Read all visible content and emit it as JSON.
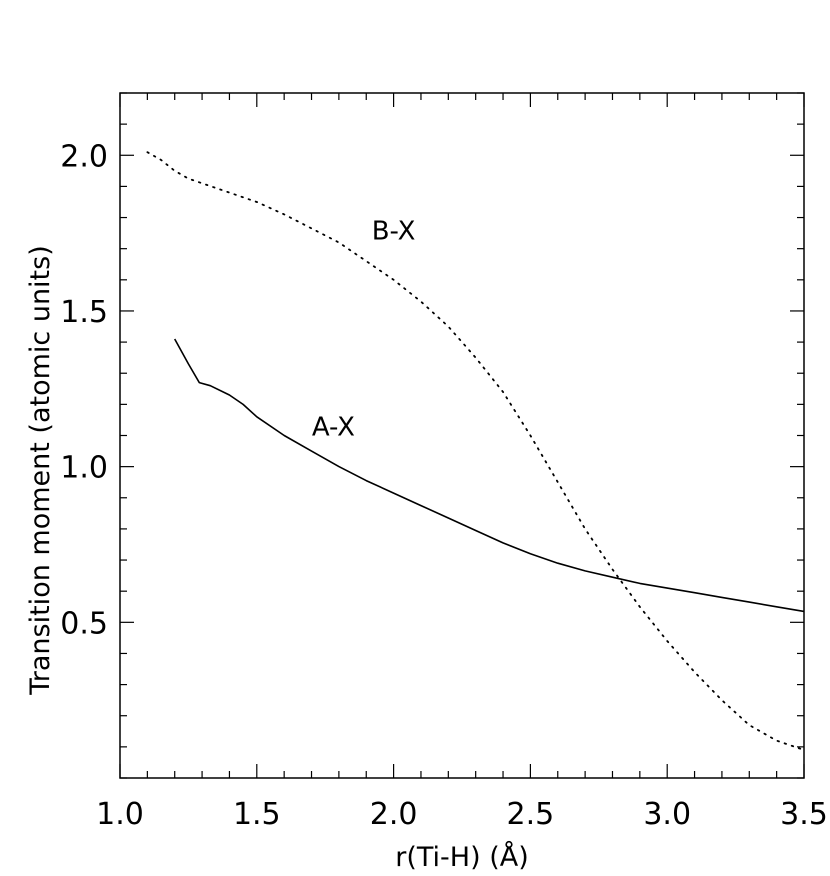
{
  "chart_data": {
    "type": "line",
    "xlabel": "r(Ti-H) (Å)",
    "ylabel": "Transition moment (atomic units)",
    "xlim": [
      1.0,
      3.5
    ],
    "ylim": [
      0.0,
      2.2
    ],
    "xticks": [
      1.0,
      1.5,
      2.0,
      2.5,
      3.0,
      3.5
    ],
    "xtick_labels": [
      "1.0",
      "1.5",
      "2.0",
      "2.5",
      "3.0",
      "3.5"
    ],
    "yticks": [
      0.5,
      1.0,
      1.5,
      2.0
    ],
    "ytick_labels": [
      "0.5",
      "1.0",
      "1.5",
      "2.0"
    ],
    "x_minor_step": 0.1,
    "y_minor_step": 0.1,
    "grid": false,
    "legend": "none",
    "series": [
      {
        "name": "B-X",
        "style": "dotted",
        "color": "#000000",
        "x": [
          1.1,
          1.15,
          1.2,
          1.25,
          1.3,
          1.4,
          1.5,
          1.6,
          1.7,
          1.8,
          1.9,
          2.0,
          2.1,
          2.2,
          2.3,
          2.4,
          2.5,
          2.6,
          2.7,
          2.8,
          2.9,
          3.0,
          3.1,
          3.2,
          3.3,
          3.4,
          3.5
        ],
        "y": [
          2.01,
          1.985,
          1.95,
          1.925,
          1.91,
          1.88,
          1.85,
          1.81,
          1.765,
          1.72,
          1.66,
          1.6,
          1.53,
          1.45,
          1.35,
          1.24,
          1.1,
          0.95,
          0.8,
          0.67,
          0.55,
          0.44,
          0.34,
          0.25,
          0.17,
          0.12,
          0.09
        ]
      },
      {
        "name": "A-X",
        "style": "solid",
        "color": "#000000",
        "x": [
          1.2,
          1.25,
          1.29,
          1.33,
          1.4,
          1.45,
          1.5,
          1.6,
          1.7,
          1.8,
          1.9,
          2.0,
          2.1,
          2.2,
          2.3,
          2.4,
          2.5,
          2.6,
          2.7,
          2.8,
          2.9,
          3.0,
          3.1,
          3.2,
          3.3,
          3.4,
          3.5
        ],
        "y": [
          1.41,
          1.33,
          1.27,
          1.26,
          1.23,
          1.2,
          1.16,
          1.1,
          1.05,
          1.0,
          0.955,
          0.915,
          0.875,
          0.835,
          0.795,
          0.755,
          0.72,
          0.69,
          0.665,
          0.645,
          0.625,
          0.61,
          0.595,
          0.58,
          0.565,
          0.55,
          0.535
        ]
      }
    ],
    "annotations": [
      {
        "text": "B-X",
        "x": 2.0,
        "y": 1.73
      },
      {
        "text": "A-X",
        "x": 1.78,
        "y": 1.1
      }
    ]
  }
}
